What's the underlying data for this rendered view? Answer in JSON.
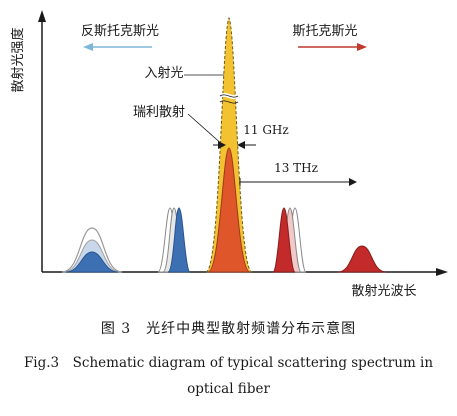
{
  "figure": {
    "ylabel": "散射光强度",
    "xlabel": "散射光波长",
    "anti_stokes_label": "反斯托克斯光",
    "stokes_label": "斯托克斯光",
    "incident_label": "入射光",
    "rayleigh_label": "瑞利散射",
    "ghz_label": "11 GHz",
    "thz_label": "13 THz",
    "colors": {
      "anti_stokes_arrow": "#7fb7d8",
      "stokes_arrow": "#c0392b",
      "incident": "#f2c230",
      "rayleigh": "#e0562b",
      "raman_anti_stokes": "#3d6fb3",
      "brillouin_stokes": "#c32a2a"
    }
  },
  "caption": {
    "cn": "图 3　光纤中典型散射频谱分布示意图",
    "en_line1": "Fig.3　Schematic diagram of typical scattering spectrum in",
    "en_line2": "optical fiber"
  }
}
